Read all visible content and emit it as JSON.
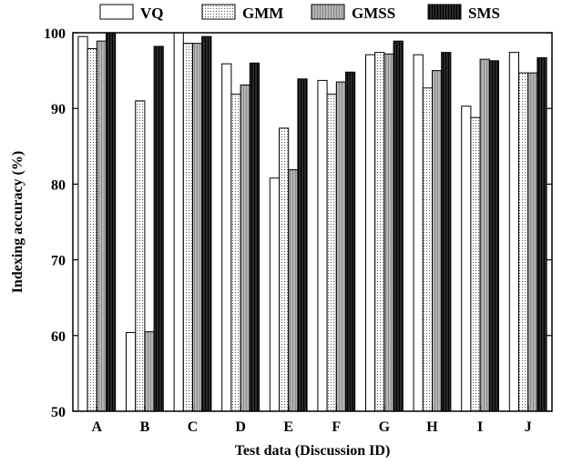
{
  "chart_data": {
    "type": "bar",
    "xlabel": "Test data (Discussion ID)",
    "ylabel": "Indexing accuracy (%)",
    "ylim": [
      50,
      100
    ],
    "yticks": [
      50,
      60,
      70,
      80,
      90,
      100
    ],
    "grid": false,
    "legend_position": "top",
    "categories": [
      "A",
      "B",
      "C",
      "D",
      "E",
      "F",
      "G",
      "H",
      "I",
      "J"
    ],
    "series": [
      {
        "name": "VQ",
        "fill": "white",
        "values": [
          99.5,
          60.4,
          100.0,
          95.9,
          80.8,
          93.7,
          97.1,
          97.1,
          90.3,
          97.4
        ]
      },
      {
        "name": "GMM",
        "fill": "dotted",
        "values": [
          97.9,
          91.0,
          98.6,
          91.9,
          87.4,
          91.9,
          97.4,
          92.7,
          88.8,
          94.7
        ]
      },
      {
        "name": "GMSS",
        "fill": "gray",
        "values": [
          98.9,
          60.5,
          98.6,
          93.1,
          81.9,
          93.5,
          97.2,
          95.0,
          96.5,
          94.7
        ]
      },
      {
        "name": "SMS",
        "fill": "black",
        "values": [
          100.0,
          98.2,
          99.5,
          96.0,
          93.9,
          94.8,
          98.9,
          97.4,
          96.3,
          96.7
        ]
      }
    ]
  }
}
